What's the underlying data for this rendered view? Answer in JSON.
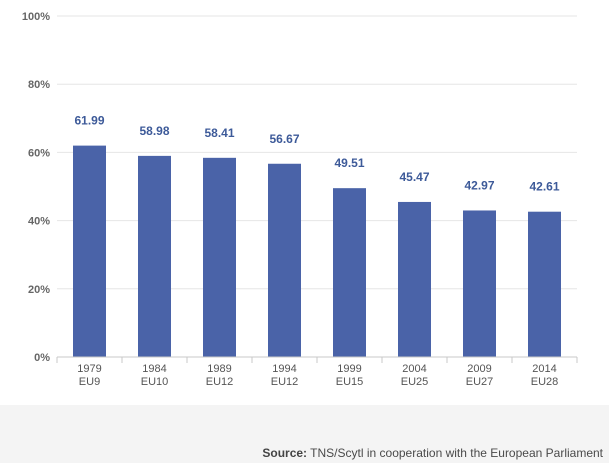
{
  "chart_data": {
    "type": "bar",
    "categories": [
      [
        "1979",
        "EU9"
      ],
      [
        "1984",
        "EU10"
      ],
      [
        "1989",
        "EU12"
      ],
      [
        "1994",
        "EU12"
      ],
      [
        "1999",
        "EU15"
      ],
      [
        "2004",
        "EU25"
      ],
      [
        "2009",
        "EU27"
      ],
      [
        "2014",
        "EU28"
      ]
    ],
    "values": [
      61.99,
      58.98,
      58.41,
      56.67,
      49.51,
      45.47,
      42.97,
      42.61
    ],
    "data_labels": [
      "61.99",
      "58.98",
      "58.41",
      "56.67",
      "49.51",
      "45.47",
      "42.97",
      "42.61"
    ],
    "y_ticks": [
      0,
      20,
      40,
      60,
      80,
      100
    ],
    "y_tick_labels": [
      "0%",
      "20%",
      "40%",
      "60%",
      "80%",
      "100%"
    ],
    "ylim": [
      0,
      100
    ],
    "title": "",
    "xlabel": "",
    "ylabel": "",
    "grid": true,
    "legend": "none",
    "colors": {
      "bar": "#4a63a8",
      "data_label": "#3d5a99",
      "grid": "#e6e6e6",
      "axis": "#c8c8c8"
    }
  },
  "source": {
    "label": "Source:",
    "text": " TNS/Scytl in cooperation with the European Parliament"
  }
}
